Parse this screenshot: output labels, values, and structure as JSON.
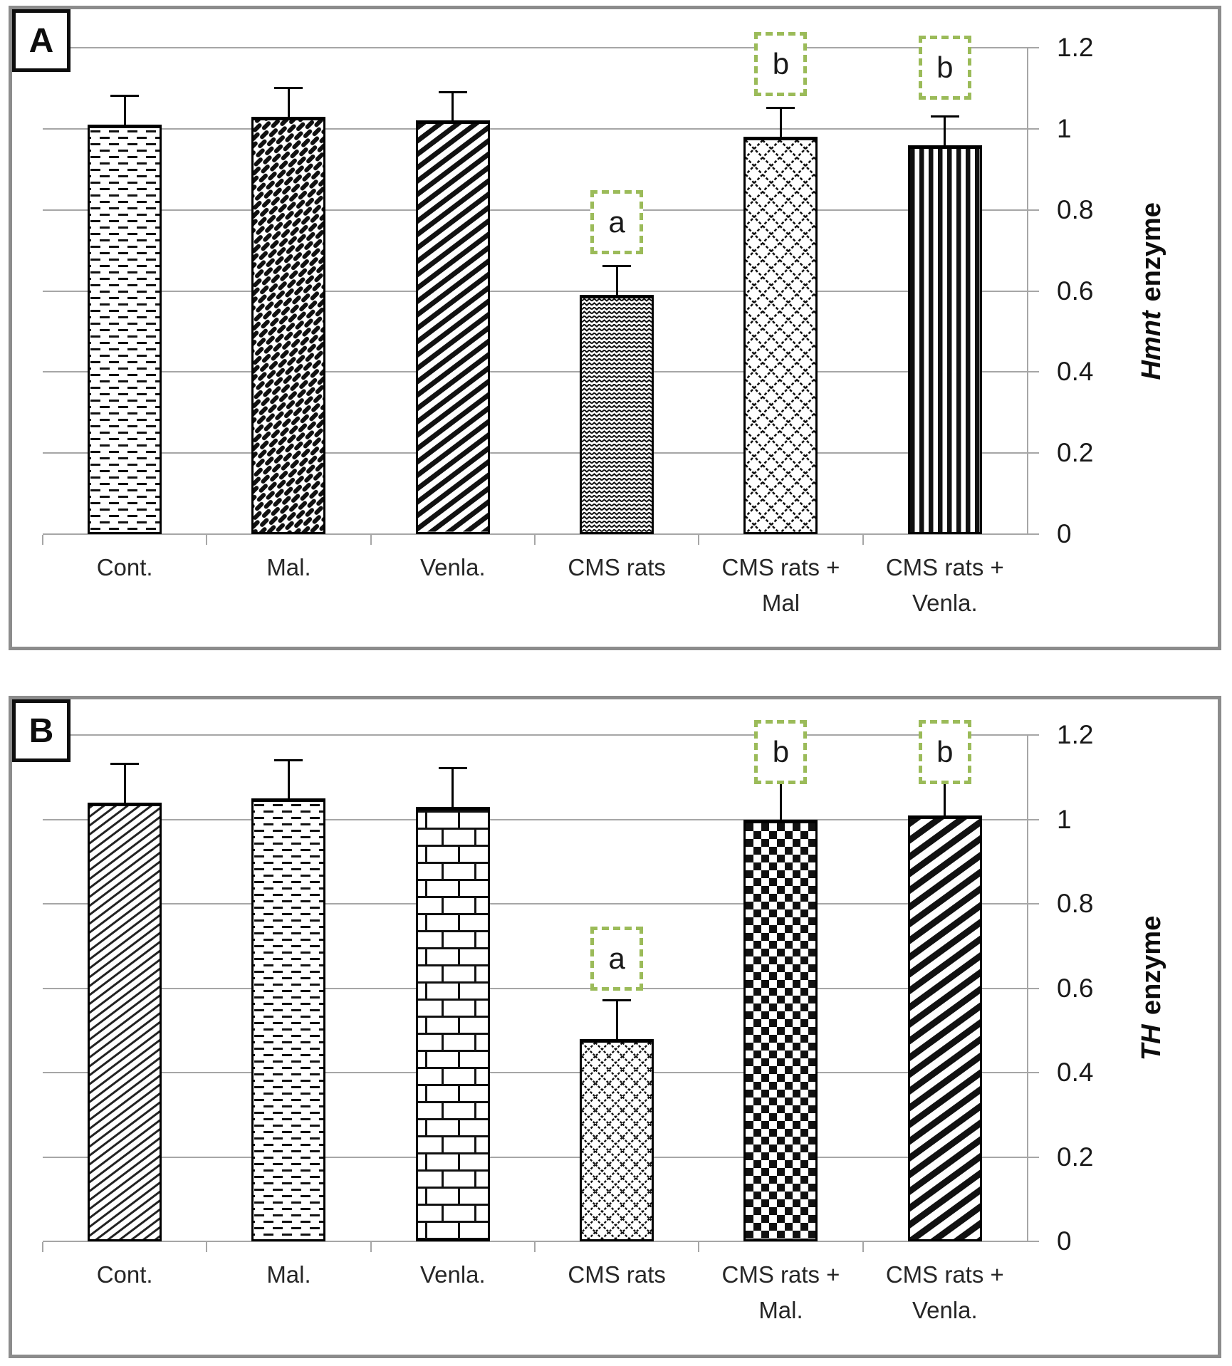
{
  "figure": {
    "background": "#ffffff"
  },
  "colors": {
    "grid": "#a6a6a6",
    "panel_border": "#8c8c8c",
    "bar_border": "#000000",
    "pattern_ink": "#111111",
    "annotation_green": "#9bbb59",
    "text": "#262626"
  },
  "chart_data": [
    {
      "type": "bar",
      "panel_label": "A",
      "ylabel": {
        "italic": "Hmnt",
        "rest": "enzyme"
      },
      "ylim": [
        0,
        1.2
      ],
      "ytick_step": 0.2,
      "yticks": [
        "1.2",
        "1",
        "0.8",
        "0.6",
        "0.4",
        "0.2",
        "0"
      ],
      "grid": true,
      "legend": "none",
      "axis_side": "right",
      "categories": [
        "Cont.",
        "Mal.",
        "Venla.",
        "CMS rats",
        "CMS rats + Mal",
        "CMS rats + Venla."
      ],
      "values": [
        1.01,
        1.03,
        1.02,
        0.59,
        0.98,
        0.96
      ],
      "errors": [
        0.07,
        0.07,
        0.07,
        0.07,
        0.07,
        0.07
      ],
      "bar_patterns": [
        "dash-rows",
        "diag-weave",
        "diag-med",
        "zigzag",
        "diamond-large",
        "vert"
      ],
      "annotations": [
        null,
        null,
        null,
        {
          "label": "a",
          "y": 0.77
        },
        {
          "label": "b",
          "y": 1.16
        },
        {
          "label": "b",
          "y": 1.15
        }
      ]
    },
    {
      "type": "bar",
      "panel_label": "B",
      "ylabel": {
        "italic": "TH",
        "rest": "enzyme"
      },
      "ylim": [
        0,
        1.2
      ],
      "ytick_step": 0.2,
      "yticks": [
        "1.2",
        "1",
        "0.8",
        "0.6",
        "0.4",
        "0.2",
        "0"
      ],
      "grid": true,
      "legend": "none",
      "axis_side": "right",
      "categories": [
        "Cont.",
        "Mal.",
        "Venla.",
        "CMS rats",
        "CMS rats + Mal.",
        "CMS rats + Venla."
      ],
      "values": [
        1.04,
        1.05,
        1.03,
        0.48,
        1.0,
        1.01
      ],
      "errors": [
        0.09,
        0.09,
        0.09,
        0.09,
        0.09,
        0.09
      ],
      "bar_patterns": [
        "thin-diag",
        "dash-rows",
        "brick",
        "diamond-small",
        "checker",
        "bold-diag"
      ],
      "annotations": [
        null,
        null,
        null,
        {
          "label": "a",
          "y": 0.67
        },
        {
          "label": "b",
          "y": 1.16
        },
        {
          "label": "b",
          "y": 1.16
        }
      ]
    }
  ]
}
